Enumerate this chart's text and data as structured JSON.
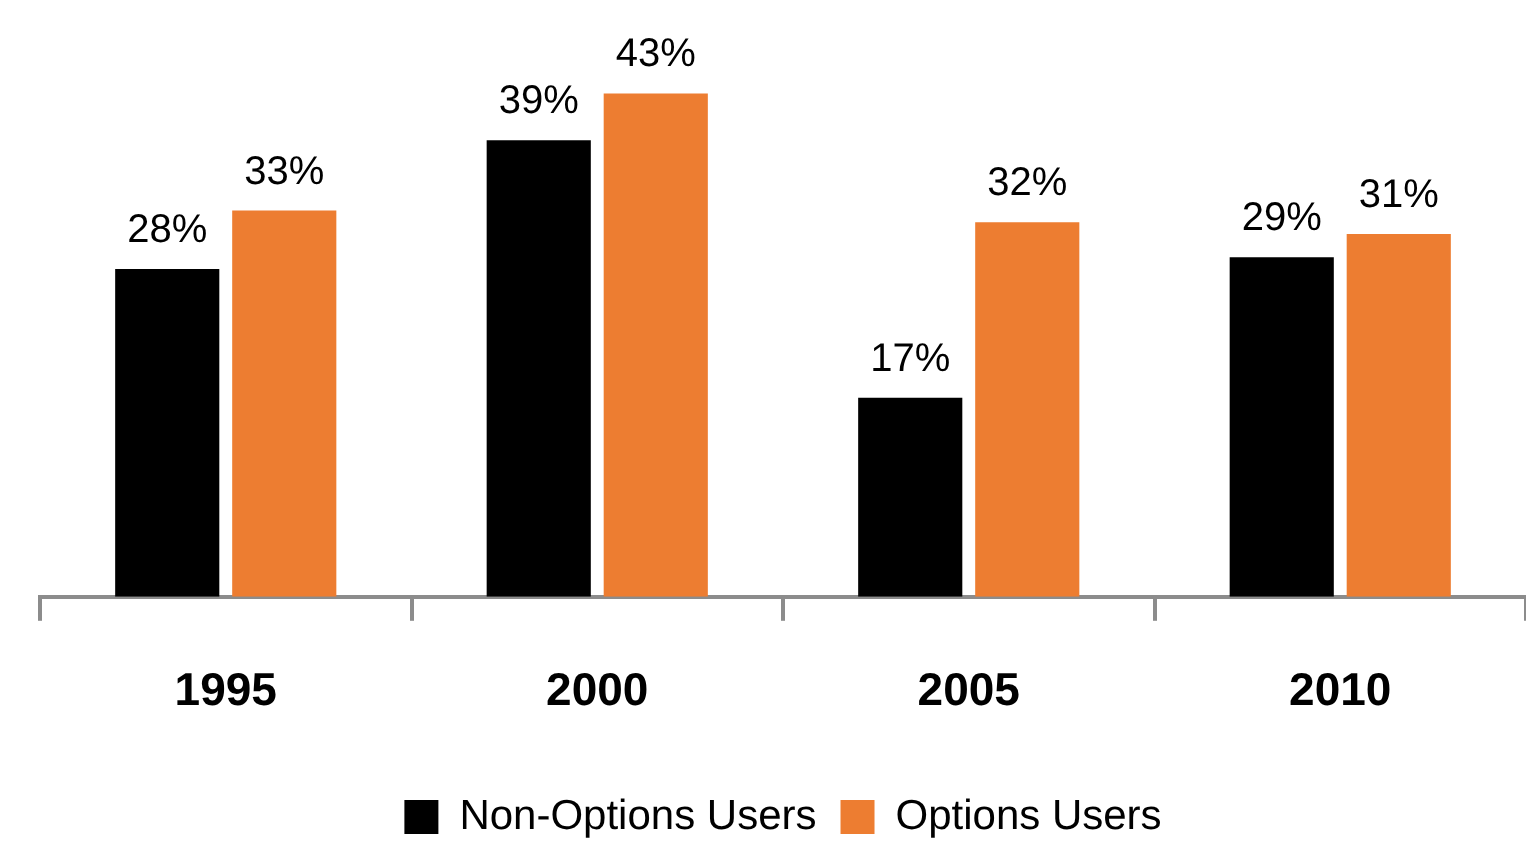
{
  "chart_data": {
    "type": "bar",
    "categories": [
      "1995",
      "2000",
      "2005",
      "2010"
    ],
    "series": [
      {
        "name": "Non-Options Users",
        "color": "#000000",
        "values": [
          28,
          39,
          17,
          29
        ],
        "value_labels": [
          "28%",
          "39%",
          "17%",
          "29%"
        ]
      },
      {
        "name": "Options Users",
        "color": "#ed7d31",
        "values": [
          33,
          43,
          32,
          31
        ],
        "value_labels": [
          "33%",
          "43%",
          "32%",
          "31%"
        ]
      }
    ],
    "legend": "bottom",
    "tick_labels": "x"
  }
}
